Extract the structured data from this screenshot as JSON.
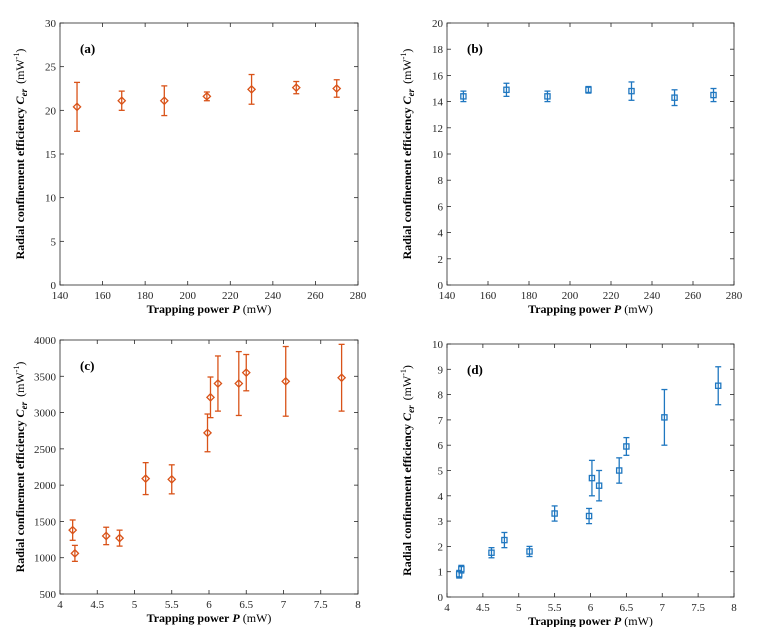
{
  "chart_data": [
    {
      "type": "scatter",
      "panel_label": "(a)",
      "xlabel_text": "Trapping power",
      "xlabel_var": "P",
      "xlabel_unit": "(mW)",
      "ylabel_text": "Radial confinement efficiency",
      "ylabel_var": "C",
      "ylabel_sub": "er",
      "ylabel_unit": "(mW",
      "ylabel_unit_exp": "-1",
      "ylabel_unit_close": ")",
      "xlim": [
        140,
        280
      ],
      "ylim": [
        0,
        30
      ],
      "xticks": [
        140,
        160,
        180,
        200,
        220,
        240,
        260,
        280
      ],
      "xtick_labels": [
        "140",
        "160",
        "180",
        "200",
        "220",
        "240",
        "260",
        "280"
      ],
      "yticks": [
        0,
        5,
        10,
        15,
        20,
        25,
        30
      ],
      "ytick_labels": [
        "0",
        "5",
        "10",
        "15",
        "20",
        "25",
        "30"
      ],
      "marker": "diamond",
      "color": "#d95319",
      "points": [
        {
          "x": 148,
          "y": 20.4,
          "err": 2.8
        },
        {
          "x": 169,
          "y": 21.1,
          "err": 1.1
        },
        {
          "x": 189,
          "y": 21.1,
          "err": 1.7
        },
        {
          "x": 209,
          "y": 21.6,
          "err": 0.5
        },
        {
          "x": 230,
          "y": 22.4,
          "err": 1.7
        },
        {
          "x": 251,
          "y": 22.6,
          "err": 0.7
        },
        {
          "x": 270,
          "y": 22.5,
          "err": 1.0
        }
      ]
    },
    {
      "type": "scatter",
      "panel_label": "(b)",
      "xlabel_text": "Trapping power",
      "xlabel_var": "P",
      "xlabel_unit": "(mW)",
      "ylabel_text": "Radial confinement efficiency",
      "ylabel_var": "C",
      "ylabel_sub": "er",
      "ylabel_unit": "(mW",
      "ylabel_unit_exp": "-1",
      "ylabel_unit_close": ")",
      "xlim": [
        140,
        280
      ],
      "ylim": [
        0,
        20
      ],
      "xticks": [
        140,
        160,
        180,
        200,
        220,
        240,
        260,
        280
      ],
      "xtick_labels": [
        "140",
        "160",
        "180",
        "200",
        "220",
        "240",
        "260",
        "280"
      ],
      "yticks": [
        0,
        2,
        4,
        6,
        8,
        10,
        12,
        14,
        16,
        18,
        20
      ],
      "ytick_labels": [
        "0",
        "2",
        "4",
        "6",
        "8",
        "10",
        "12",
        "14",
        "16",
        "18",
        "20"
      ],
      "marker": "square",
      "color": "#1f77c0",
      "points": [
        {
          "x": 148,
          "y": 14.4,
          "err": 0.4
        },
        {
          "x": 169,
          "y": 14.9,
          "err": 0.5
        },
        {
          "x": 189,
          "y": 14.4,
          "err": 0.4
        },
        {
          "x": 209,
          "y": 14.9,
          "err": 0.25
        },
        {
          "x": 230,
          "y": 14.8,
          "err": 0.7
        },
        {
          "x": 251,
          "y": 14.3,
          "err": 0.6
        },
        {
          "x": 270,
          "y": 14.5,
          "err": 0.5
        }
      ]
    },
    {
      "type": "scatter",
      "panel_label": "(c)",
      "xlabel_text": "Trapping power",
      "xlabel_var": "P",
      "xlabel_unit": "(mW)",
      "ylabel_text": "Radial confinement efficiency",
      "ylabel_var": "C",
      "ylabel_sub": "er",
      "ylabel_unit": "(mW",
      "ylabel_unit_exp": "-1",
      "ylabel_unit_close": ")",
      "xlim": [
        4,
        8
      ],
      "ylim": [
        500,
        4000
      ],
      "xticks": [
        4,
        4.5,
        5,
        5.5,
        6,
        6.5,
        7,
        7.5,
        8
      ],
      "xtick_labels": [
        "4",
        "4.5",
        "5",
        "5.5",
        "6",
        "6.5",
        "7",
        "7.5",
        "8"
      ],
      "yticks": [
        500,
        1000,
        1500,
        2000,
        2500,
        3000,
        3500,
        4000
      ],
      "ytick_labels": [
        "500",
        "1000",
        "1500",
        "2000",
        "2500",
        "3000",
        "3500",
        "4000"
      ],
      "marker": "diamond",
      "color": "#d95319",
      "points": [
        {
          "x": 4.17,
          "y": 1380,
          "err": 140
        },
        {
          "x": 4.2,
          "y": 1060,
          "err": 110
        },
        {
          "x": 4.62,
          "y": 1300,
          "err": 120
        },
        {
          "x": 4.8,
          "y": 1270,
          "err": 110
        },
        {
          "x": 5.15,
          "y": 2090,
          "err": 220
        },
        {
          "x": 5.5,
          "y": 2080,
          "err": 200
        },
        {
          "x": 5.98,
          "y": 2720,
          "err": 260
        },
        {
          "x": 6.02,
          "y": 3210,
          "err": 280
        },
        {
          "x": 6.12,
          "y": 3400,
          "err": 380
        },
        {
          "x": 6.4,
          "y": 3400,
          "err": 440
        },
        {
          "x": 6.5,
          "y": 3550,
          "err": 250
        },
        {
          "x": 7.03,
          "y": 3430,
          "err": 480
        },
        {
          "x": 7.78,
          "y": 3480,
          "err": 460
        }
      ]
    },
    {
      "type": "scatter",
      "panel_label": "(d)",
      "xlabel_text": "Trapping power",
      "xlabel_var": "P",
      "xlabel_unit": "(mW)",
      "ylabel_text": "Radial confinement efficiency",
      "ylabel_var": "C",
      "ylabel_sub": "er",
      "ylabel_unit": "(mW",
      "ylabel_unit_exp": "-1",
      "ylabel_unit_close": ")",
      "xlim": [
        4,
        8
      ],
      "ylim": [
        0,
        10
      ],
      "xticks": [
        4,
        4.5,
        5,
        5.5,
        6,
        6.5,
        7,
        7.5,
        8
      ],
      "xtick_labels": [
        "4",
        "4.5",
        "5",
        "5.5",
        "6",
        "6.5",
        "7",
        "7.5",
        "8"
      ],
      "yticks": [
        0,
        1,
        2,
        3,
        4,
        5,
        6,
        7,
        8,
        9,
        10
      ],
      "ytick_labels": [
        "0",
        "1",
        "2",
        "3",
        "4",
        "5",
        "6",
        "7",
        "8",
        "9",
        "10"
      ],
      "marker": "square",
      "color": "#1f77c0",
      "points": [
        {
          "x": 4.17,
          "y": 0.9,
          "err": 0.15
        },
        {
          "x": 4.2,
          "y": 1.1,
          "err": 0.15
        },
        {
          "x": 4.62,
          "y": 1.75,
          "err": 0.2
        },
        {
          "x": 4.8,
          "y": 2.25,
          "err": 0.3
        },
        {
          "x": 5.15,
          "y": 1.8,
          "err": 0.2
        },
        {
          "x": 5.5,
          "y": 3.3,
          "err": 0.3
        },
        {
          "x": 5.98,
          "y": 3.2,
          "err": 0.3
        },
        {
          "x": 6.02,
          "y": 4.7,
          "err": 0.7
        },
        {
          "x": 6.12,
          "y": 4.4,
          "err": 0.6
        },
        {
          "x": 6.4,
          "y": 5.0,
          "err": 0.5
        },
        {
          "x": 6.5,
          "y": 5.95,
          "err": 0.35
        },
        {
          "x": 7.03,
          "y": 7.1,
          "err": 1.1
        },
        {
          "x": 7.78,
          "y": 8.35,
          "err": 0.75
        }
      ]
    }
  ]
}
